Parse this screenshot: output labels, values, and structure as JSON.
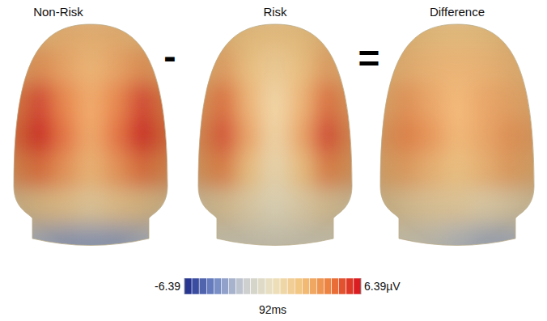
{
  "chart_data": {
    "type": "topomap",
    "time_label": "92ms",
    "operators": [
      "-",
      "="
    ],
    "maps": [
      {
        "title": "Non-Risk",
        "cells": [
          [
            1.5,
            2,
            2.5,
            2.5,
            2.5,
            2,
            1.5
          ],
          [
            2.5,
            3.5,
            3,
            2.5,
            3,
            3.5,
            2.5
          ],
          [
            4,
            5.5,
            4,
            3,
            4,
            5.5,
            4
          ],
          [
            4.5,
            6.2,
            4.5,
            3,
            4.5,
            6.3,
            4.5
          ],
          [
            3.5,
            4.5,
            3.5,
            2.5,
            3.5,
            4.5,
            3.5
          ],
          [
            1,
            1.5,
            1.5,
            1,
            1.5,
            1.5,
            1
          ],
          [
            -2,
            -2.5,
            -3,
            -3,
            -3,
            -2.5,
            -2
          ]
        ]
      },
      {
        "title": "Risk",
        "cells": [
          [
            1.5,
            2,
            2,
            2,
            2,
            2,
            1.5
          ],
          [
            2,
            3,
            2,
            1.5,
            2,
            3,
            2
          ],
          [
            3,
            4.5,
            2.5,
            1,
            2.5,
            4.5,
            3
          ],
          [
            3.5,
            5.2,
            3,
            1,
            3,
            5.5,
            3.5
          ],
          [
            3,
            4,
            2,
            0.5,
            2,
            4,
            3
          ],
          [
            0.5,
            1,
            0.5,
            0,
            0.5,
            1,
            0.5
          ],
          [
            -0.5,
            -0.5,
            -0.5,
            -0.5,
            -0.5,
            -0.5,
            -0.5
          ]
        ]
      },
      {
        "title": "Difference",
        "cells": [
          [
            1.5,
            2,
            2,
            2,
            2,
            2,
            1.5
          ],
          [
            2,
            2.5,
            2.5,
            2.5,
            2.5,
            2.5,
            2
          ],
          [
            2.5,
            3.5,
            3,
            2.5,
            3,
            3,
            2.5
          ],
          [
            3,
            4,
            3.5,
            2.5,
            3,
            3.5,
            3
          ],
          [
            2.5,
            3,
            2.5,
            2,
            2.5,
            3,
            2.5
          ],
          [
            1,
            1,
            1,
            1,
            0.5,
            0.5,
            0.5
          ],
          [
            0,
            -0.5,
            -1,
            -2,
            -2.5,
            -2.5,
            -1.5
          ]
        ]
      }
    ],
    "colorbar": {
      "range": [
        -6.39,
        6.39
      ],
      "ticks": [
        -6.39,
        {
          "value": 6.39,
          "label": "6.39µV"
        }
      ]
    }
  }
}
